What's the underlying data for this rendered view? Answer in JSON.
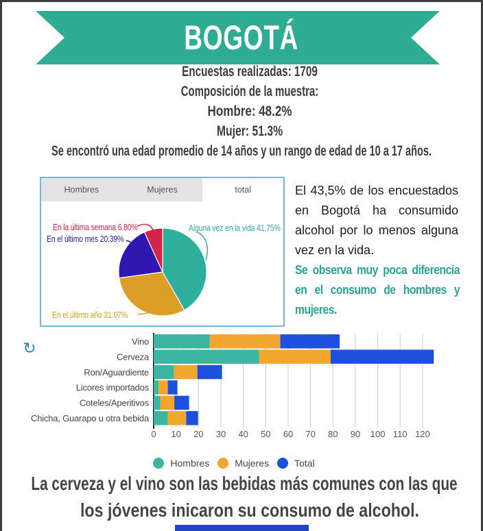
{
  "banner": {
    "title": "BOGOTÁ",
    "color": "#2EAC94"
  },
  "stats": {
    "lines": [
      "Encuestas realizadas: 1709",
      "Composición de la muestra:",
      "Hombre: 48.2%",
      "Mujer: 51.3%",
      "Se encontró una edad promedio de 14 años y un rango de edad de 10 a 17 años."
    ]
  },
  "pie_panel": {
    "tabs": [
      {
        "label": "Hombres",
        "active": false
      },
      {
        "label": "Mujeres",
        "active": false
      },
      {
        "label": "total",
        "active": true
      }
    ]
  },
  "right_text": {
    "paragraph_black": "El 43,5% de los encuestados en Bogotá ha consumido alcohol por lo menos alguna vez en la vida.",
    "paragraph_teal": "Se observa muy poca diferencia en el consumo de hombres y mujeres.",
    "teal_color": "#2AA392"
  },
  "chart_data": [
    {
      "type": "pie",
      "tab_selected": "total",
      "start": "top-clockwise",
      "slices": [
        {
          "label": "Alguna vez en la vida",
          "value": 41.75,
          "color": "#2FAF9B"
        },
        {
          "label": "En el último año",
          "value": 31.07,
          "color": "#DD9E28"
        },
        {
          "label": "En el último mes",
          "value": 20.39,
          "color": "#2F17AF"
        },
        {
          "label": "En la última semana",
          "value": 6.8,
          "color": "#D22349"
        }
      ]
    },
    {
      "type": "bar",
      "orientation": "horizontal-stacked",
      "categories": [
        "Vino",
        "Cerveza",
        "Ron/Aguardiente",
        "Licores importados",
        "Coteles/Aperitivos",
        "Chicha, Guarapo u otra bebida"
      ],
      "series": [
        {
          "name": "Hombres",
          "color": "#3BB6A1",
          "values": [
            25,
            47,
            9,
            2.2,
            3,
            6.3
          ]
        },
        {
          "name": "Mujeres",
          "color": "#F2A62F",
          "values": [
            31.5,
            32,
            10.5,
            4.1,
            6.2,
            8.2
          ]
        },
        {
          "name": "Total",
          "color": "#1D50DC",
          "values": [
            26.5,
            46,
            11,
            4.3,
            6.6,
            5.3
          ]
        }
      ],
      "xlim": [
        0,
        125
      ],
      "xticks": [
        0,
        10,
        20,
        30,
        40,
        50,
        60,
        70,
        80,
        90,
        100,
        110,
        120
      ],
      "grid": true,
      "legend_position": "bottom"
    }
  ],
  "refresh_icon": {
    "glyph": "↻",
    "color": "#2B7FC4"
  },
  "caption": {
    "line1": "La cerveza y el vino son las bebidas más comunes con las que",
    "line2": "los jóvenes inicaron su consumo de alcohol."
  },
  "footer": {
    "blue_bar_color": "#2343BF"
  }
}
